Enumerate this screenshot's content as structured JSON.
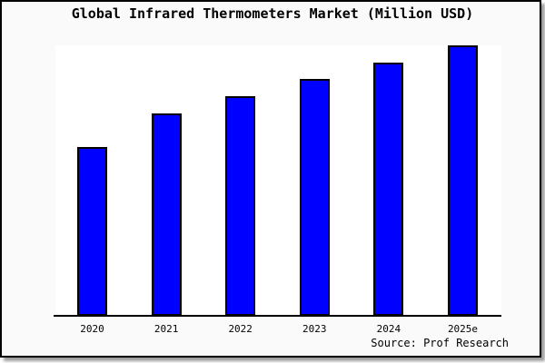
{
  "title": "Global Infrared Thermometers Market (Million USD)",
  "source": "Source: Prof Research",
  "colors": {
    "bar_fill": "#0000ff",
    "bar_border": "#000000",
    "figure_background": "#fafafa",
    "plot_background": "#ffffff",
    "frame_border": "#000000",
    "axis_line": "#000000",
    "text": "#000000"
  },
  "chart_data": {
    "type": "bar",
    "title": "Global Infrared Thermometers Market (Million USD)",
    "categories": [
      "2020",
      "2021",
      "2022",
      "2023",
      "2024",
      "2025e"
    ],
    "values": [
      62.4,
      74.8,
      81.2,
      87.6,
      93.6,
      100
    ],
    "xlabel": "",
    "ylabel": "",
    "ylim": [
      0,
      100
    ],
    "grid": false,
    "legend": null,
    "y_axis_ticks_visible": false,
    "note": "No numeric y-axis is shown in the figure; values are relative bar heights normalized so 2025e = 100."
  }
}
